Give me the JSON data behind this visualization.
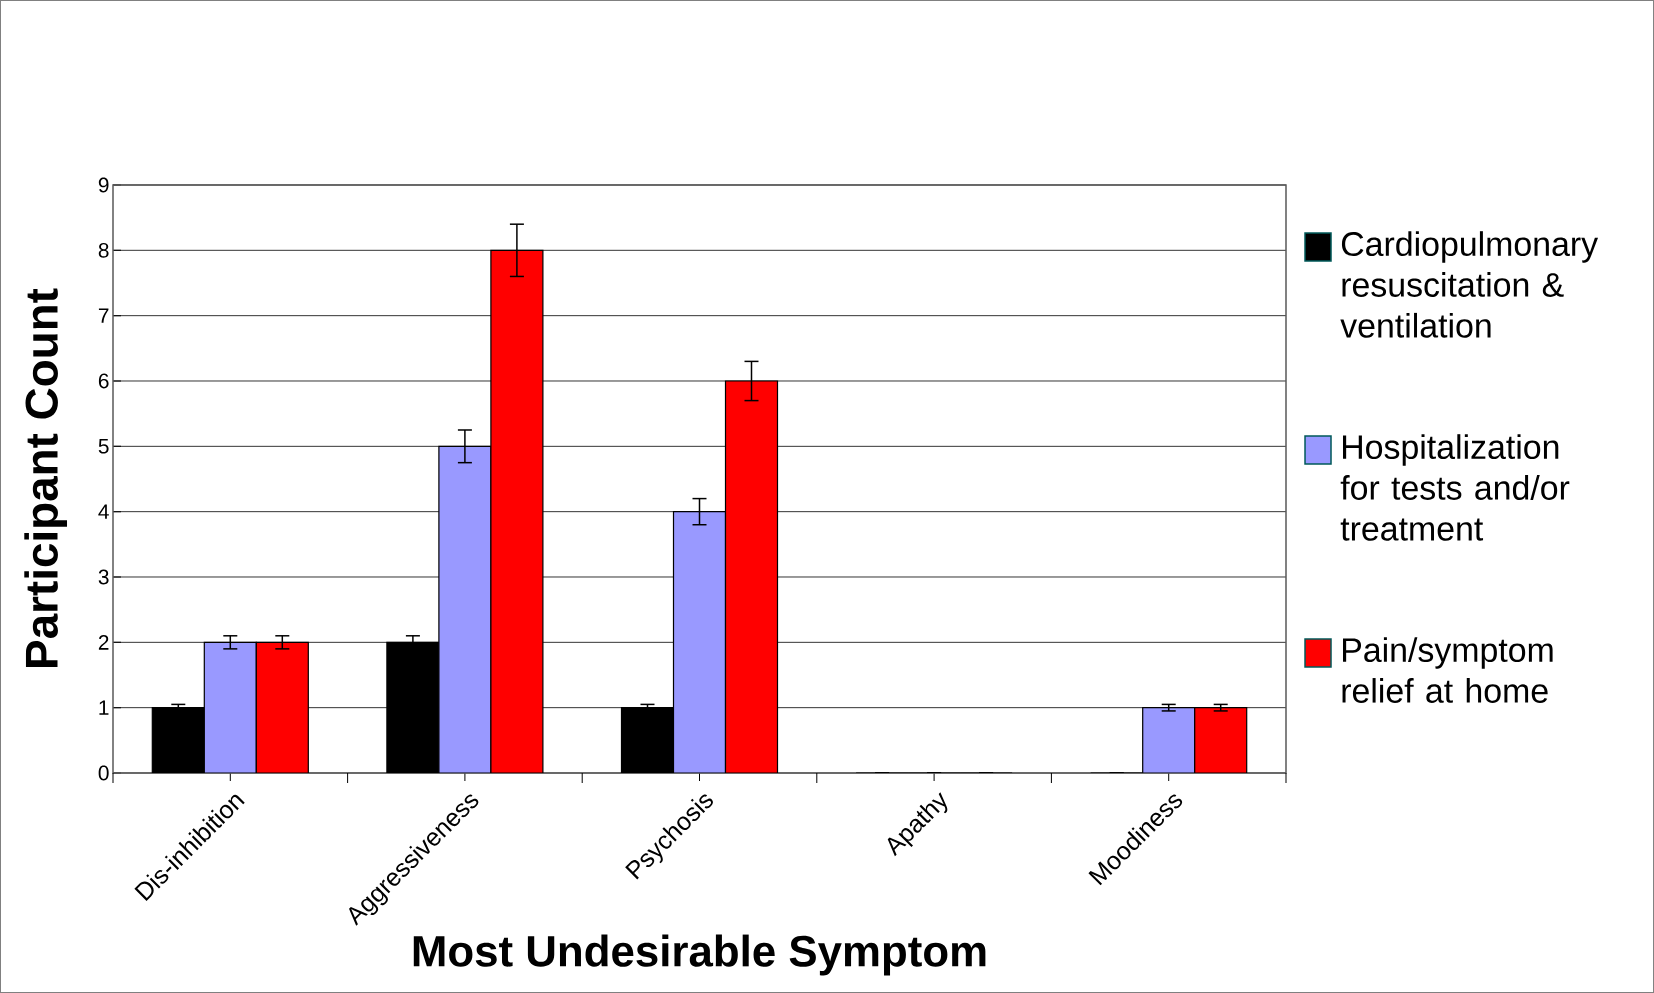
{
  "chart_data": {
    "type": "bar",
    "xlabel": "Most Undesirable Symptom",
    "ylabel": "Participant Count",
    "categories": [
      "Dis-inhibition",
      "Aggressiveness",
      "Psychosis",
      "Apathy",
      "Moodiness"
    ],
    "series": [
      {
        "name": "Cardiopulmonary resuscitation & ventilation",
        "color": "#000000",
        "values": [
          1,
          2,
          1,
          0,
          0
        ],
        "errors": [
          0.05,
          0.1,
          0.05,
          0,
          0
        ]
      },
      {
        "name": "Hospitalization for tests and/or treatment",
        "color": "#9999ff",
        "values": [
          2,
          5,
          4,
          0,
          1
        ],
        "errors": [
          0.1,
          0.25,
          0.2,
          0,
          0.05
        ]
      },
      {
        "name": "Pain/symptom relief at home",
        "color": "#ff0000",
        "values": [
          2,
          8,
          6,
          0,
          1
        ],
        "errors": [
          0.1,
          0.4,
          0.3,
          0,
          0.05
        ]
      }
    ],
    "ylim": [
      0,
      9
    ],
    "yticks": [
      0,
      1,
      2,
      3,
      4,
      5,
      6,
      7,
      8,
      9
    ],
    "grid": "y",
    "legend": "right"
  }
}
